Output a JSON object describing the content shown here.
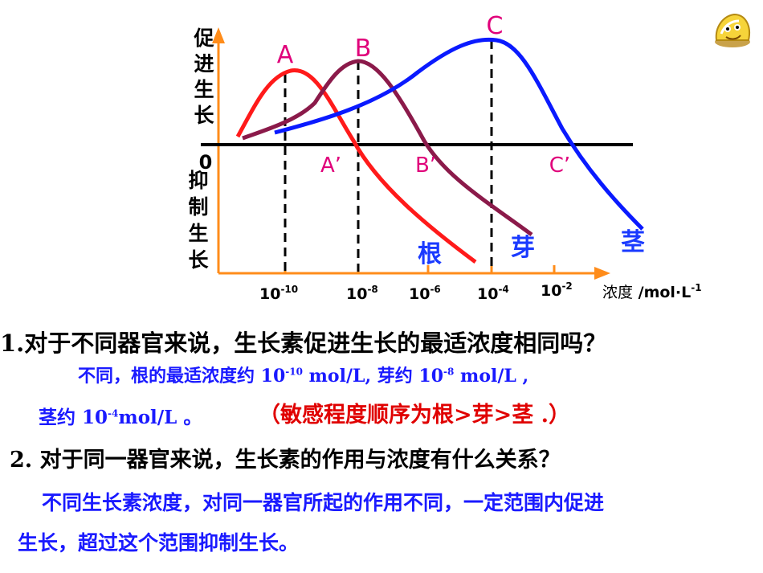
{
  "diagram": {
    "y_label_up": [
      "促",
      "进",
      "生",
      "长"
    ],
    "y_label_down": [
      "抑",
      "制",
      "生",
      "长"
    ],
    "origin": "0",
    "x_ticks": [
      {
        "base": "10",
        "exp": "-10"
      },
      {
        "base": "10",
        "exp": "-8"
      },
      {
        "base": "10",
        "exp": "-6"
      },
      {
        "base": "10",
        "exp": "-4"
      },
      {
        "base": "10",
        "exp": "-2"
      }
    ],
    "x_unit_cn": "浓度",
    "x_unit": " /mol·L",
    "x_unit_exp": "-1",
    "peaks": [
      "A",
      "B",
      "C"
    ],
    "crossings": [
      "A’",
      "B’",
      "C’"
    ],
    "organs": [
      "根",
      "芽",
      "茎"
    ],
    "colors": {
      "root": "#ff1a1a",
      "bud": "#8b1a4a",
      "stem": "#0a1aff",
      "axis": "#ff8c1a",
      "peak_label": "#e0007a"
    }
  },
  "q1": {
    "question": "1.对于不同器官来说，生长素促进生长的最适浓度相同吗？",
    "ans_l1_a": "不同，根的最适浓度约 10",
    "ans_l1_exp1": "-10",
    "ans_l1_b": " mol/L, 芽约 10",
    "ans_l1_exp2": "-8",
    "ans_l1_c": " mol/L ,",
    "ans_l2_a": "茎约 10",
    "ans_l2_exp": "-4",
    "ans_l2_b": "mol/L 。",
    "ans_l2_red": "（敏感程度顺序为根>芽>茎 .）"
  },
  "q2": {
    "question": "2. 对于同一器官来说，生长素的作用与浓度有什么关系？",
    "ans_l1": "不同生长素浓度，对同一器官所起的作用不同，一定范围内促进",
    "ans_l2": "生长，超过这个范围抑制生长。"
  }
}
